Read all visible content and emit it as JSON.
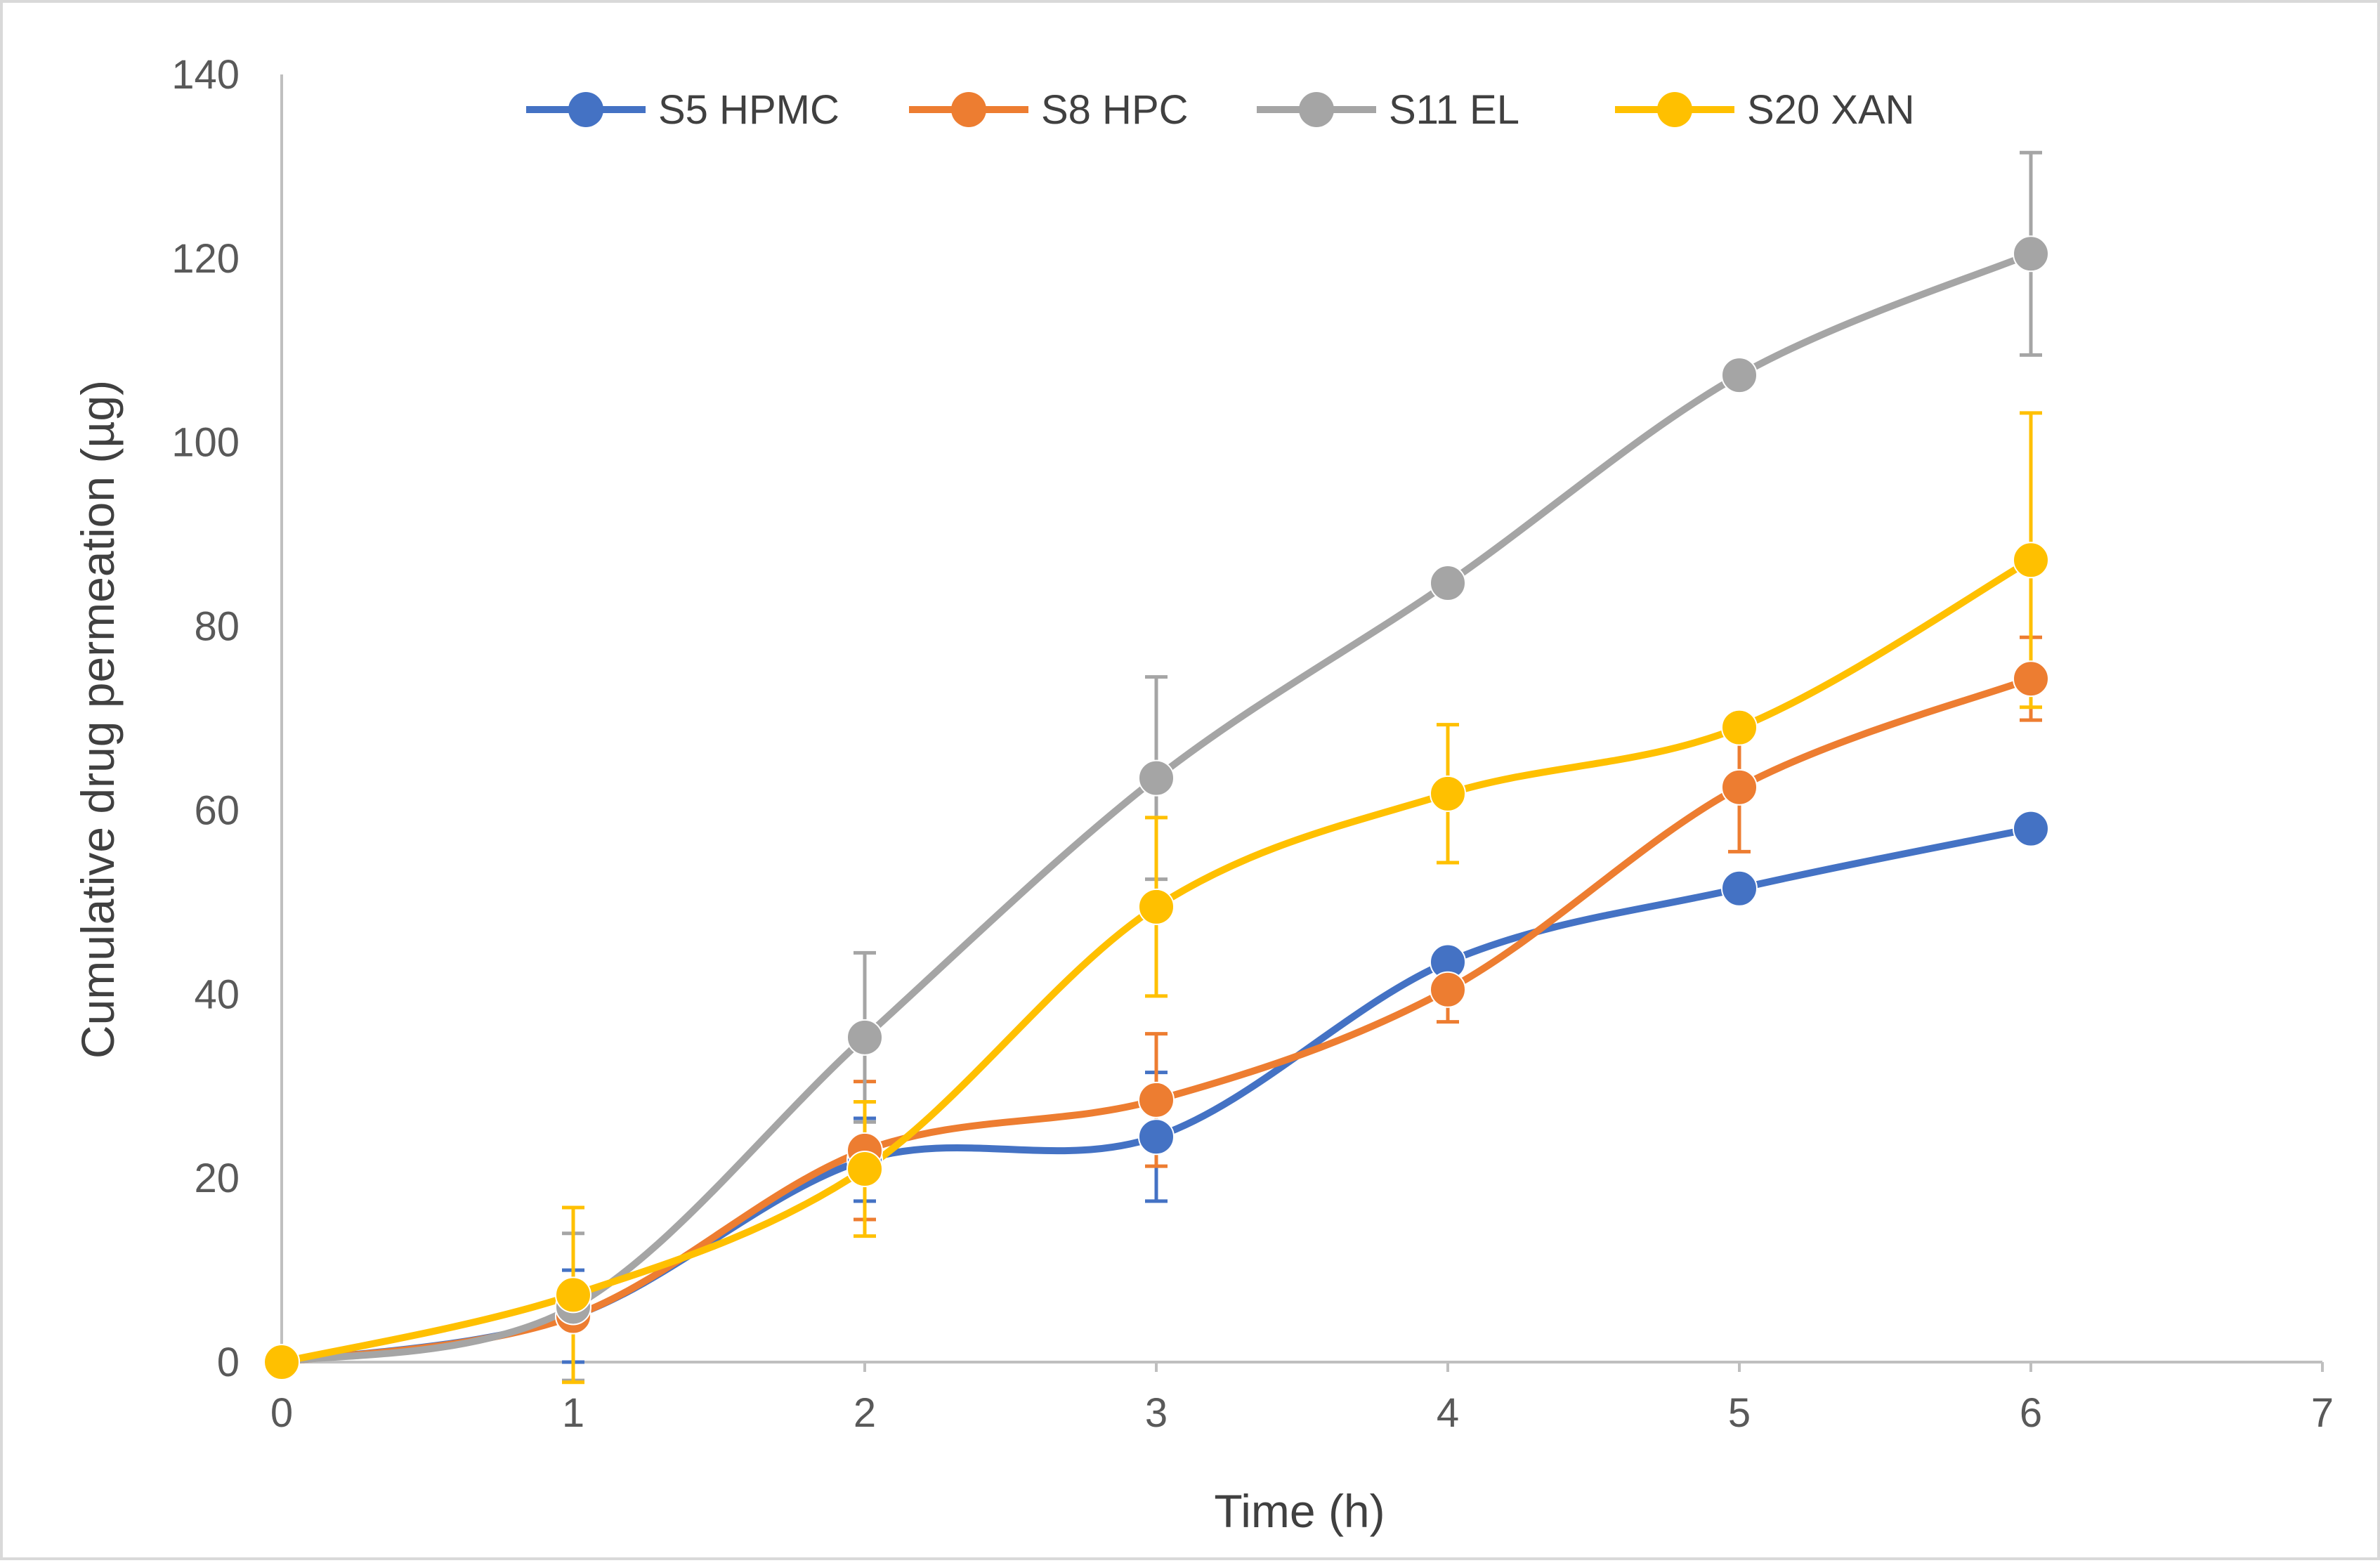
{
  "chart_data": {
    "type": "line",
    "title": "",
    "xlabel": "Time (h)",
    "ylabel": "Cumulative drug permeation (µg)",
    "xlim": [
      0,
      7
    ],
    "ylim": [
      0,
      140
    ],
    "xticks": [
      0,
      1,
      2,
      3,
      4,
      5,
      6,
      7
    ],
    "yticks": [
      0,
      20,
      40,
      60,
      80,
      100,
      120,
      140
    ],
    "grid": false,
    "legend_position": "top",
    "smooth": true,
    "series": [
      {
        "name": "S5 HPMC",
        "color": "#4472C4",
        "x": [
          0,
          1,
          2,
          3,
          4,
          5,
          6
        ],
        "y": [
          0,
          5,
          22,
          24.5,
          43.5,
          51.5,
          58
        ],
        "error": [
          0,
          5,
          4.5,
          7,
          0,
          0,
          0
        ]
      },
      {
        "name": "S8 HPC",
        "color": "#ED7D31",
        "x": [
          0,
          1,
          2,
          3,
          4,
          5,
          6
        ],
        "y": [
          0,
          5,
          23,
          28.5,
          40.5,
          62.5,
          74.3
        ],
        "error": [
          0,
          0,
          7.5,
          7.2,
          3.5,
          7,
          4.5
        ]
      },
      {
        "name": "S11 EL",
        "color": "#A5A5A5",
        "x": [
          0,
          1,
          2,
          3,
          4,
          5,
          6
        ],
        "y": [
          0,
          6,
          35.3,
          63.5,
          84.7,
          107.3,
          120.5
        ],
        "error": [
          0,
          8,
          9.2,
          11,
          0,
          0,
          11
        ]
      },
      {
        "name": "S20 XAN",
        "color": "#FFC000",
        "x": [
          0,
          1,
          2,
          3,
          4,
          5,
          6
        ],
        "y": [
          0,
          7.3,
          21,
          49.5,
          61.8,
          69,
          87.2
        ],
        "error": [
          0,
          9.5,
          7.3,
          9.7,
          7.5,
          0,
          16
        ]
      }
    ]
  }
}
